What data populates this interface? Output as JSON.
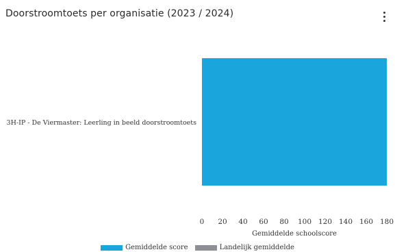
{
  "card": {
    "title": "Doorstroomtoets per organisatie (2023 / 2024)",
    "menu_icon": "more-vert-icon"
  },
  "chart_data": {
    "type": "bar",
    "orientation": "horizontal",
    "categories": [
      "3H-IP - De Viermaster: Leerling in beeld doorstroomtoets"
    ],
    "series": [
      {
        "name": "Gemiddelde score",
        "values": [
          180
        ],
        "color": "#1aa6dd"
      },
      {
        "name": "Landelijk gemiddelde",
        "values": [
          null
        ],
        "color": "#8c9095"
      }
    ],
    "xlabel": "Gemiddelde schoolscore",
    "ylabel": "",
    "xlim": [
      0,
      180
    ],
    "xticks": [
      0,
      20,
      40,
      60,
      80,
      100,
      120,
      140,
      160,
      180
    ],
    "legend_position": "bottom",
    "grid": false
  }
}
